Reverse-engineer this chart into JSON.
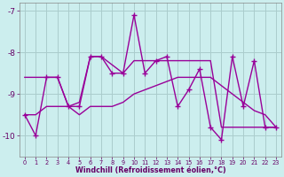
{
  "xlabel": "Windchill (Refroidissement éolien,°C)",
  "x": [
    0,
    1,
    2,
    3,
    4,
    5,
    6,
    7,
    8,
    9,
    10,
    11,
    12,
    13,
    14,
    15,
    16,
    17,
    18,
    19,
    20,
    21,
    22,
    23
  ],
  "ylim": [
    -10.5,
    -6.8
  ],
  "xlim": [
    -0.5,
    23.5
  ],
  "yticks": [
    -10,
    -9,
    -8,
    -7
  ],
  "line_color": "#990099",
  "bg_color": "#cceeee",
  "grid_color": "#aacccc",
  "marker": "+",
  "linewidth": 1.0,
  "figsize": [
    3.2,
    2.0
  ],
  "dpi": 100,
  "series": [
    [
      -9.5,
      -10.0,
      -8.6,
      -8.6,
      -9.3,
      -9.3,
      -8.1,
      -8.1,
      -8.5,
      -8.5,
      -7.1,
      -8.5,
      -8.2,
      -8.1,
      -9.3,
      -8.9,
      -8.4,
      -9.8,
      -10.1,
      -8.1,
      -9.3,
      -8.2,
      -9.8,
      -9.8
    ],
    [
      -8.6,
      -8.6,
      -8.6,
      -8.6,
      -9.3,
      -9.2,
      -8.1,
      -8.1,
      -8.3,
      -8.5,
      -8.2,
      -8.2,
      -8.2,
      -8.2,
      -8.2,
      -8.2,
      -8.2,
      -8.2,
      -9.8,
      -9.8,
      -9.8,
      -9.8,
      -9.8,
      -9.8
    ],
    [
      -9.5,
      -9.5,
      -9.3,
      -9.3,
      -9.3,
      -9.5,
      -9.3,
      -9.3,
      -9.3,
      -9.2,
      -9.0,
      -8.9,
      -8.8,
      -8.7,
      -8.6,
      -8.6,
      -8.6,
      -8.6,
      -8.8,
      -9.0,
      -9.2,
      -9.4,
      -9.5,
      -9.8
    ]
  ],
  "markers": [
    true,
    false,
    false
  ]
}
